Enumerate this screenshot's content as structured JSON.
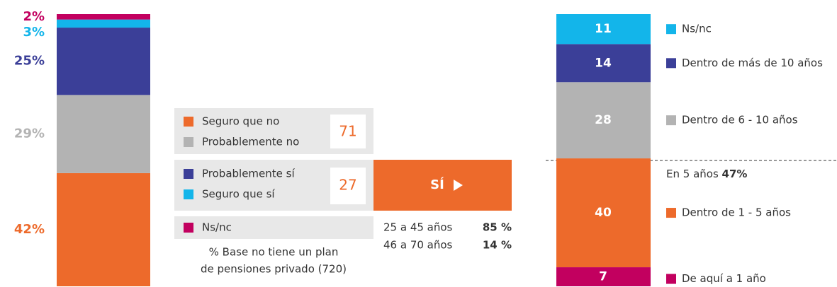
{
  "chart_data": [
    {
      "type": "stacked_bar",
      "series": [
        {
          "name": "Seguro que no",
          "color": "#ED6A2B",
          "values": [
            42
          ],
          "value_labels": [
            "42%"
          ]
        },
        {
          "name": "Probablemente no",
          "color": "#B3B3B3",
          "values": [
            29
          ],
          "value_labels": [
            "29%"
          ]
        },
        {
          "name": "Probablemente sí",
          "color": "#3B3F98",
          "values": [
            25
          ],
          "value_labels": [
            "25%"
          ]
        },
        {
          "name": "Seguro que sí",
          "color": "#13B5EA",
          "values": [
            3
          ],
          "value_labels": [
            "3%"
          ]
        },
        {
          "name": "Ns/nc",
          "color": "#C2005F",
          "values": [
            2
          ],
          "value_labels": [
            "2%"
          ]
        }
      ]
    },
    {
      "type": "stacked_bar",
      "series": [
        {
          "name": "De aquí a 1 año",
          "color": "#C2005F",
          "values": [
            7
          ]
        },
        {
          "name": "Dentro de 1 - 5 años",
          "color": "#ED6A2B",
          "values": [
            40
          ]
        },
        {
          "name": "Dentro de 6 - 10 años",
          "color": "#B3B3B3",
          "values": [
            28
          ]
        },
        {
          "name": "Dentro de más de 10 años",
          "color": "#3B3F98",
          "values": [
            14
          ]
        },
        {
          "name": "Ns/nc",
          "color": "#13B5EA",
          "values": [
            11
          ]
        }
      ],
      "annotation": {
        "text": "En 5 años",
        "value": 47,
        "value_label": "47%"
      }
    }
  ],
  "summary": {
    "totals": [
      71,
      27
    ],
    "button": "SÍ",
    "note": [
      "% Base no tiene un plan",
      "de pensiones privado (720)"
    ],
    "ages": {
      "categories": [
        "25 a 45 años",
        "46 a 70 años"
      ],
      "values": [
        85,
        14
      ],
      "value_labels": [
        "85 %",
        "14 %"
      ]
    }
  }
}
